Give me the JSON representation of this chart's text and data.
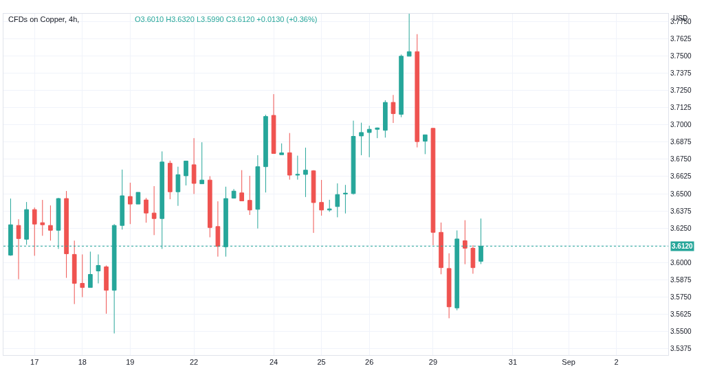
{
  "chart_data": {
    "type": "candlestick",
    "title": "CFDs on Copper, 4h,",
    "ylabel": "USD",
    "annotations": [
      "O3.6010 H3.6320 L3.5990 C3.6120 +0.0130 (+0.36%)"
    ],
    "categories": [
      null,
      null,
      null,
      "17",
      null,
      null,
      null,
      null,
      null,
      "18",
      null,
      null,
      null,
      null,
      null,
      "19",
      null,
      null,
      null,
      null,
      null,
      null,
      null,
      "22",
      null,
      null,
      null,
      null,
      null,
      null,
      null,
      null,
      null,
      "24",
      null,
      null,
      null,
      null,
      null,
      "25",
      null,
      null,
      null,
      null,
      null,
      "26",
      null,
      null,
      null,
      null,
      null,
      null,
      null,
      "29",
      null,
      null,
      null,
      null,
      null,
      null,
      null,
      null,
      null,
      "31",
      null,
      null,
      null,
      null,
      null,
      null,
      "Sep",
      null,
      null,
      null,
      null,
      null,
      "2",
      null,
      null,
      null,
      null,
      null,
      null
    ],
    "ohlc": [
      [
        3.6055,
        3.6465,
        3.605,
        3.6275
      ],
      [
        3.627,
        3.6315,
        3.588,
        3.6175
      ],
      [
        3.617,
        3.644,
        3.613,
        3.6385
      ],
      [
        3.6385,
        3.64,
        3.605,
        3.628
      ],
      [
        3.629,
        3.6455,
        3.6195,
        3.6275
      ],
      [
        3.627,
        3.6415,
        3.616,
        3.6235
      ],
      [
        3.6235,
        3.647,
        3.61,
        3.6465
      ],
      [
        3.6465,
        3.652,
        3.589,
        3.6065
      ],
      [
        3.606,
        3.616,
        3.57,
        3.585
      ],
      [
        3.585,
        3.606,
        3.575,
        3.582
      ],
      [
        3.582,
        3.608,
        3.582,
        3.5915
      ],
      [
        3.594,
        3.606,
        3.585,
        3.598
      ],
      [
        3.597,
        3.598,
        3.563,
        3.58
      ],
      [
        3.58,
        3.628,
        3.5487,
        3.627
      ],
      [
        3.627,
        3.6675,
        3.624,
        3.6485
      ],
      [
        3.648,
        3.658,
        3.628,
        3.6425
      ],
      [
        3.6425,
        3.651,
        3.6425,
        3.651
      ],
      [
        3.6455,
        3.647,
        3.629,
        3.636
      ],
      [
        3.636,
        3.6555,
        3.62,
        3.632
      ],
      [
        3.632,
        3.6807,
        3.61,
        3.673
      ],
      [
        3.6721,
        3.674,
        3.646,
        3.6514
      ],
      [
        3.6514,
        3.6696,
        3.6412,
        3.6638
      ],
      [
        3.663,
        3.6737,
        3.656,
        3.6737
      ],
      [
        3.671,
        3.6903,
        3.6498,
        3.6575
      ],
      [
        3.6572,
        3.6873,
        3.6572,
        3.6599
      ],
      [
        3.6599,
        3.6627,
        3.6184,
        3.6255
      ],
      [
        3.6262,
        3.6445,
        3.6044,
        3.6118
      ],
      [
        3.6115,
        3.6551,
        3.6044,
        3.6465
      ],
      [
        3.6468,
        3.6534,
        3.6465,
        3.6519
      ],
      [
        3.6506,
        3.6671,
        3.6448,
        3.6448
      ],
      [
        3.6452,
        3.663,
        3.6346,
        3.6382
      ],
      [
        3.6387,
        3.6779,
        3.6248,
        3.6696
      ],
      [
        3.6696,
        3.7073,
        3.6509,
        3.706
      ],
      [
        3.7068,
        3.7222,
        3.6792,
        3.6792
      ],
      [
        3.6783,
        3.6865,
        3.6783,
        3.6796
      ],
      [
        3.6797,
        3.694,
        3.6602,
        3.6635
      ],
      [
        3.6635,
        3.6776,
        3.6602,
        3.664
      ],
      [
        3.664,
        3.6834,
        3.6476,
        3.6671
      ],
      [
        3.6666,
        3.6671,
        3.6216,
        3.6436
      ],
      [
        3.6437,
        3.66,
        3.6341,
        3.6382
      ],
      [
        3.6382,
        3.6456,
        3.6369,
        3.639
      ],
      [
        3.6407,
        3.6575,
        3.6329,
        3.6494
      ],
      [
        3.6498,
        3.6564,
        3.6357,
        3.6504
      ],
      [
        3.6501,
        3.703,
        3.6494,
        3.6916
      ],
      [
        3.6919,
        3.7015,
        3.6779,
        3.6944
      ],
      [
        3.6944,
        3.6993,
        3.6765,
        3.6967
      ],
      [
        3.6967,
        3.698,
        3.6903,
        3.6977
      ],
      [
        3.696,
        3.7178,
        3.6907,
        3.7162
      ],
      [
        3.7162,
        3.7216,
        3.7013,
        3.7081
      ],
      [
        3.7076,
        3.7509,
        3.7055,
        3.7497
      ],
      [
        3.7497,
        3.7811,
        3.7497,
        3.753
      ],
      [
        3.753,
        3.7657,
        3.6836,
        3.6878
      ],
      [
        3.6881,
        3.6927,
        3.6787,
        3.6927
      ],
      [
        3.6974,
        3.6977,
        3.6126,
        3.622
      ],
      [
        3.622,
        3.6291,
        3.5916,
        3.5964
      ],
      [
        3.5958,
        3.6068,
        3.5597,
        3.568
      ],
      [
        3.5672,
        3.6234,
        3.5655,
        3.6172
      ],
      [
        3.6159,
        3.6308,
        3.5989,
        3.6105
      ],
      [
        3.6105,
        3.6126,
        3.592,
        3.5964
      ],
      [
        3.601,
        3.632,
        3.599,
        3.612
      ],
      null,
      null,
      null,
      null,
      null,
      null,
      null,
      null,
      null,
      null,
      null,
      null,
      null,
      null,
      null,
      null,
      null,
      null,
      null,
      null,
      null,
      null,
      null
    ],
    "colors": [
      "#26a69a",
      "#ef5350",
      "#26a69a",
      "#ef5350",
      "#ef5350",
      "#ef5350",
      "#26a69a",
      "#ef5350",
      "#ef5350",
      "#ef5350",
      "#26a69a",
      "#26a69a",
      "#ef5350",
      "#26a69a",
      "#26a69a",
      "#ef5350",
      "#26a69a",
      "#ef5350",
      "#ef5350",
      "#26a69a",
      "#ef5350",
      "#26a69a",
      "#26a69a",
      "#ef5350",
      "#26a69a",
      "#ef5350",
      "#ef5350",
      "#26a69a",
      "#26a69a",
      "#ef5350",
      "#ef5350",
      "#26a69a",
      "#26a69a",
      "#ef5350",
      "#26a69a",
      "#ef5350",
      "#26a69a",
      "#26a69a",
      "#ef5350",
      "#ef5350",
      "#26a69a",
      "#26a69a",
      "#26a69a",
      "#26a69a",
      "#26a69a",
      "#26a69a",
      "#26a69a",
      "#26a69a",
      "#ef5350",
      "#26a69a",
      "#26a69a",
      "#ef5350",
      "#26a69a",
      "#ef5350",
      "#ef5350",
      "#ef5350",
      "#26a69a",
      "#ef5350",
      "#ef5350",
      "#26a69a",
      null,
      null,
      null,
      null,
      null,
      null,
      null,
      null,
      null,
      null,
      null,
      null,
      null,
      null,
      null,
      null,
      null,
      null,
      null,
      null,
      null,
      null,
      null
    ],
    "ylim": [
      3.533,
      3.7805
    ],
    "yticks": [
      {
        "value": 3.5375,
        "label": "3.5375"
      },
      {
        "value": 3.55,
        "label": "3.5500"
      },
      {
        "value": 3.5625,
        "label": "3.5625"
      },
      {
        "value": 3.575,
        "label": "3.5750"
      },
      {
        "value": 3.5875,
        "label": "3.5875"
      },
      {
        "value": 3.6,
        "label": "3.6000"
      },
      {
        "value": 3.6125,
        "label": null
      },
      {
        "value": 3.625,
        "label": "3.6250"
      },
      {
        "value": 3.6375,
        "label": "3.6375"
      },
      {
        "value": 3.65,
        "label": "3.6500"
      },
      {
        "value": 3.6625,
        "label": "3.6625"
      },
      {
        "value": 3.675,
        "label": "3.6750"
      },
      {
        "value": 3.6875,
        "label": "3.6875"
      },
      {
        "value": 3.7,
        "label": "3.7000"
      },
      {
        "value": 3.7125,
        "label": "3.7125"
      },
      {
        "value": 3.725,
        "label": "3.7250"
      },
      {
        "value": 3.7375,
        "label": "3.7375"
      },
      {
        "value": 3.75,
        "label": "3.7500"
      },
      {
        "value": 3.7625,
        "label": "3.7625"
      },
      {
        "value": 3.775,
        "label": "3.7750"
      }
    ],
    "ref_lines": [
      {
        "axis": "y",
        "value": 3.612,
        "label": "3.6120",
        "color": "#26a69a",
        "line_style": "dotted"
      }
    ],
    "grid": true
  }
}
